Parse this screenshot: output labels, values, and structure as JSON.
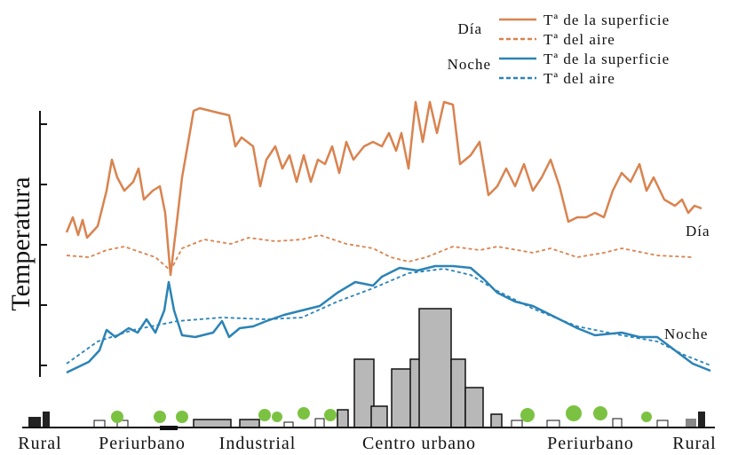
{
  "legend": {
    "day": {
      "label": "Día",
      "surface": "Tª de la superficie",
      "air": "Tª del aire"
    },
    "night": {
      "label": "Noche",
      "surface": "Tª de la superficie",
      "air": "Tª del aire"
    }
  },
  "y_axis_label": "Temperatura",
  "curve_labels": {
    "day": "Día",
    "night": "Noche"
  },
  "zones": [
    "Rural",
    "Periurbano",
    "Industrial",
    "Centro urbano",
    "Periurbano",
    "Rural"
  ]
}
